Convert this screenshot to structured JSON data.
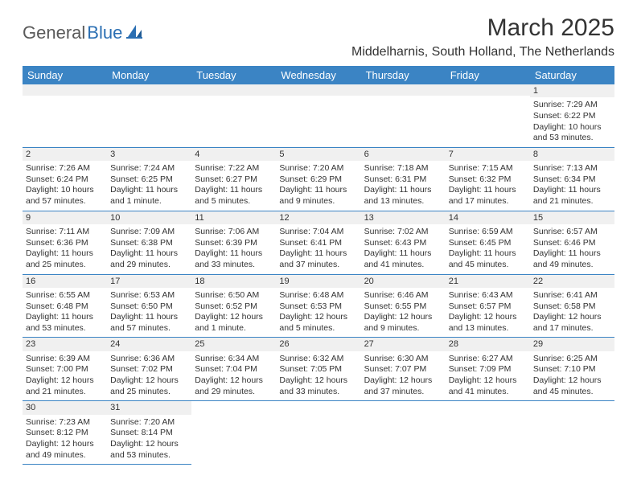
{
  "logo": {
    "part1": "General",
    "part2": "Blue"
  },
  "title": "March 2025",
  "location": "Middelharnis, South Holland, The Netherlands",
  "colors": {
    "header_bg": "#3b84c4",
    "header_fg": "#ffffff",
    "daynum_bg": "#f0f0f0",
    "rule": "#3b84c4",
    "text": "#333333",
    "logo_gray": "#5a5a5a",
    "logo_blue": "#2b6fb3"
  },
  "weekdays": [
    "Sunday",
    "Monday",
    "Tuesday",
    "Wednesday",
    "Thursday",
    "Friday",
    "Saturday"
  ],
  "weeks": [
    [
      null,
      null,
      null,
      null,
      null,
      null,
      {
        "n": "1",
        "sr": "Sunrise: 7:29 AM",
        "ss": "Sunset: 6:22 PM",
        "dl": "Daylight: 10 hours and 53 minutes."
      }
    ],
    [
      {
        "n": "2",
        "sr": "Sunrise: 7:26 AM",
        "ss": "Sunset: 6:24 PM",
        "dl": "Daylight: 10 hours and 57 minutes."
      },
      {
        "n": "3",
        "sr": "Sunrise: 7:24 AM",
        "ss": "Sunset: 6:25 PM",
        "dl": "Daylight: 11 hours and 1 minute."
      },
      {
        "n": "4",
        "sr": "Sunrise: 7:22 AM",
        "ss": "Sunset: 6:27 PM",
        "dl": "Daylight: 11 hours and 5 minutes."
      },
      {
        "n": "5",
        "sr": "Sunrise: 7:20 AM",
        "ss": "Sunset: 6:29 PM",
        "dl": "Daylight: 11 hours and 9 minutes."
      },
      {
        "n": "6",
        "sr": "Sunrise: 7:18 AM",
        "ss": "Sunset: 6:31 PM",
        "dl": "Daylight: 11 hours and 13 minutes."
      },
      {
        "n": "7",
        "sr": "Sunrise: 7:15 AM",
        "ss": "Sunset: 6:32 PM",
        "dl": "Daylight: 11 hours and 17 minutes."
      },
      {
        "n": "8",
        "sr": "Sunrise: 7:13 AM",
        "ss": "Sunset: 6:34 PM",
        "dl": "Daylight: 11 hours and 21 minutes."
      }
    ],
    [
      {
        "n": "9",
        "sr": "Sunrise: 7:11 AM",
        "ss": "Sunset: 6:36 PM",
        "dl": "Daylight: 11 hours and 25 minutes."
      },
      {
        "n": "10",
        "sr": "Sunrise: 7:09 AM",
        "ss": "Sunset: 6:38 PM",
        "dl": "Daylight: 11 hours and 29 minutes."
      },
      {
        "n": "11",
        "sr": "Sunrise: 7:06 AM",
        "ss": "Sunset: 6:39 PM",
        "dl": "Daylight: 11 hours and 33 minutes."
      },
      {
        "n": "12",
        "sr": "Sunrise: 7:04 AM",
        "ss": "Sunset: 6:41 PM",
        "dl": "Daylight: 11 hours and 37 minutes."
      },
      {
        "n": "13",
        "sr": "Sunrise: 7:02 AM",
        "ss": "Sunset: 6:43 PM",
        "dl": "Daylight: 11 hours and 41 minutes."
      },
      {
        "n": "14",
        "sr": "Sunrise: 6:59 AM",
        "ss": "Sunset: 6:45 PM",
        "dl": "Daylight: 11 hours and 45 minutes."
      },
      {
        "n": "15",
        "sr": "Sunrise: 6:57 AM",
        "ss": "Sunset: 6:46 PM",
        "dl": "Daylight: 11 hours and 49 minutes."
      }
    ],
    [
      {
        "n": "16",
        "sr": "Sunrise: 6:55 AM",
        "ss": "Sunset: 6:48 PM",
        "dl": "Daylight: 11 hours and 53 minutes."
      },
      {
        "n": "17",
        "sr": "Sunrise: 6:53 AM",
        "ss": "Sunset: 6:50 PM",
        "dl": "Daylight: 11 hours and 57 minutes."
      },
      {
        "n": "18",
        "sr": "Sunrise: 6:50 AM",
        "ss": "Sunset: 6:52 PM",
        "dl": "Daylight: 12 hours and 1 minute."
      },
      {
        "n": "19",
        "sr": "Sunrise: 6:48 AM",
        "ss": "Sunset: 6:53 PM",
        "dl": "Daylight: 12 hours and 5 minutes."
      },
      {
        "n": "20",
        "sr": "Sunrise: 6:46 AM",
        "ss": "Sunset: 6:55 PM",
        "dl": "Daylight: 12 hours and 9 minutes."
      },
      {
        "n": "21",
        "sr": "Sunrise: 6:43 AM",
        "ss": "Sunset: 6:57 PM",
        "dl": "Daylight: 12 hours and 13 minutes."
      },
      {
        "n": "22",
        "sr": "Sunrise: 6:41 AM",
        "ss": "Sunset: 6:58 PM",
        "dl": "Daylight: 12 hours and 17 minutes."
      }
    ],
    [
      {
        "n": "23",
        "sr": "Sunrise: 6:39 AM",
        "ss": "Sunset: 7:00 PM",
        "dl": "Daylight: 12 hours and 21 minutes."
      },
      {
        "n": "24",
        "sr": "Sunrise: 6:36 AM",
        "ss": "Sunset: 7:02 PM",
        "dl": "Daylight: 12 hours and 25 minutes."
      },
      {
        "n": "25",
        "sr": "Sunrise: 6:34 AM",
        "ss": "Sunset: 7:04 PM",
        "dl": "Daylight: 12 hours and 29 minutes."
      },
      {
        "n": "26",
        "sr": "Sunrise: 6:32 AM",
        "ss": "Sunset: 7:05 PM",
        "dl": "Daylight: 12 hours and 33 minutes."
      },
      {
        "n": "27",
        "sr": "Sunrise: 6:30 AM",
        "ss": "Sunset: 7:07 PM",
        "dl": "Daylight: 12 hours and 37 minutes."
      },
      {
        "n": "28",
        "sr": "Sunrise: 6:27 AM",
        "ss": "Sunset: 7:09 PM",
        "dl": "Daylight: 12 hours and 41 minutes."
      },
      {
        "n": "29",
        "sr": "Sunrise: 6:25 AM",
        "ss": "Sunset: 7:10 PM",
        "dl": "Daylight: 12 hours and 45 minutes."
      }
    ],
    [
      {
        "n": "30",
        "sr": "Sunrise: 7:23 AM",
        "ss": "Sunset: 8:12 PM",
        "dl": "Daylight: 12 hours and 49 minutes."
      },
      {
        "n": "31",
        "sr": "Sunrise: 7:20 AM",
        "ss": "Sunset: 8:14 PM",
        "dl": "Daylight: 12 hours and 53 minutes."
      },
      null,
      null,
      null,
      null,
      null
    ]
  ]
}
